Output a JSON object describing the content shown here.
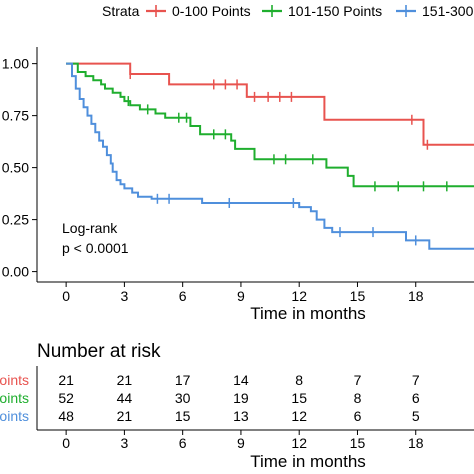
{
  "legend": {
    "title": "Strata",
    "items": [
      {
        "label": "0-100 Points",
        "color": "#E8534F"
      },
      {
        "label": "101-150 Points",
        "color": "#1FAE2E"
      },
      {
        "label": "151-300",
        "color": "#4F8FDC"
      }
    ]
  },
  "annotation": {
    "line1": "Log-rank",
    "line2": "p < 0.0001"
  },
  "risk_table": {
    "title": "Number at risk",
    "row_labels": [
      "oints",
      "Points",
      "oints"
    ]
  },
  "chart_data": [
    {
      "type": "line",
      "subtype": "kaplan-meier",
      "xlabel": "Time in months",
      "ylabel": "",
      "xlim": [
        -1.5,
        21
      ],
      "ylim": [
        -0.05,
        1.08
      ],
      "x_ticks": [
        0,
        3,
        6,
        9,
        12,
        15,
        18
      ],
      "x_tick_labels": [
        "0",
        "3",
        "6",
        "9",
        "12",
        "15",
        "18"
      ],
      "y_ticks": [
        0.0,
        0.25,
        0.5,
        0.75,
        1.0
      ],
      "y_tick_labels": [
        "0.00",
        "0.25",
        "0.50",
        "0.75",
        "1.00"
      ],
      "grid": false,
      "legend_position": "top",
      "series": [
        {
          "name": "0-100 Points",
          "color": "#E8534F",
          "steps": [
            [
              0,
              1.0
            ],
            [
              3.3,
              0.95
            ],
            [
              5.3,
              0.9
            ],
            [
              9.3,
              0.84
            ],
            [
              13.3,
              0.73
            ],
            [
              18.4,
              0.61
            ],
            [
              21,
              0.61
            ]
          ],
          "censors": [
            [
              3.3,
              0.95
            ],
            [
              7.6,
              0.9
            ],
            [
              8.2,
              0.9
            ],
            [
              8.8,
              0.9
            ],
            [
              9.7,
              0.84
            ],
            [
              10.4,
              0.84
            ],
            [
              11.0,
              0.84
            ],
            [
              11.6,
              0.84
            ],
            [
              17.8,
              0.73
            ],
            [
              18.6,
              0.61
            ]
          ]
        },
        {
          "name": "101-150 Points",
          "color": "#1FAE2E",
          "steps": [
            [
              0,
              1.0
            ],
            [
              0.6,
              0.96
            ],
            [
              1.0,
              0.94
            ],
            [
              1.4,
              0.92
            ],
            [
              1.8,
              0.9
            ],
            [
              2.0,
              0.88
            ],
            [
              2.4,
              0.86
            ],
            [
              2.8,
              0.84
            ],
            [
              3.0,
              0.82
            ],
            [
              3.3,
              0.8
            ],
            [
              3.8,
              0.78
            ],
            [
              4.6,
              0.76
            ],
            [
              5.1,
              0.74
            ],
            [
              6.4,
              0.7
            ],
            [
              6.9,
              0.66
            ],
            [
              8.5,
              0.63
            ],
            [
              8.7,
              0.59
            ],
            [
              9.7,
              0.54
            ],
            [
              13.4,
              0.5
            ],
            [
              14.5,
              0.46
            ],
            [
              14.8,
              0.41
            ],
            [
              21,
              0.41
            ]
          ],
          "censors": [
            [
              3.2,
              0.82
            ],
            [
              4.2,
              0.78
            ],
            [
              5.8,
              0.74
            ],
            [
              6.2,
              0.74
            ],
            [
              7.6,
              0.66
            ],
            [
              8.2,
              0.66
            ],
            [
              10.7,
              0.54
            ],
            [
              11.3,
              0.54
            ],
            [
              12.7,
              0.54
            ],
            [
              15.9,
              0.41
            ],
            [
              17.1,
              0.41
            ],
            [
              18.4,
              0.41
            ],
            [
              19.6,
              0.41
            ]
          ]
        },
        {
          "name": "151-300",
          "color": "#4F8FDC",
          "steps": [
            [
              0,
              1.0
            ],
            [
              0.3,
              0.94
            ],
            [
              0.5,
              0.88
            ],
            [
              0.7,
              0.83
            ],
            [
              0.9,
              0.79
            ],
            [
              1.1,
              0.75
            ],
            [
              1.3,
              0.71
            ],
            [
              1.5,
              0.67
            ],
            [
              1.7,
              0.63
            ],
            [
              1.9,
              0.6
            ],
            [
              2.1,
              0.56
            ],
            [
              2.3,
              0.52
            ],
            [
              2.4,
              0.48
            ],
            [
              2.6,
              0.44
            ],
            [
              2.8,
              0.42
            ],
            [
              3.0,
              0.4
            ],
            [
              3.4,
              0.38
            ],
            [
              3.7,
              0.36
            ],
            [
              4.4,
              0.35
            ],
            [
              5.6,
              0.35
            ],
            [
              7.0,
              0.33
            ],
            [
              8.6,
              0.33
            ],
            [
              12.0,
              0.31
            ],
            [
              12.6,
              0.29
            ],
            [
              12.9,
              0.25
            ],
            [
              13.3,
              0.21
            ],
            [
              13.7,
              0.19
            ],
            [
              17.5,
              0.15
            ],
            [
              18.7,
              0.11
            ],
            [
              21,
              0.11
            ]
          ],
          "censors": [
            [
              4.7,
              0.35
            ],
            [
              5.3,
              0.35
            ],
            [
              8.4,
              0.33
            ],
            [
              11.7,
              0.33
            ],
            [
              14.1,
              0.19
            ],
            [
              15.8,
              0.19
            ],
            [
              18.0,
              0.15
            ]
          ]
        }
      ]
    },
    {
      "type": "table",
      "title": "Number at risk",
      "xlabel": "Time in months",
      "columns": [
        "0",
        "3",
        "6",
        "9",
        "12",
        "15",
        "18"
      ],
      "rows": [
        {
          "color": "#E8534F",
          "values": [
            "21",
            "21",
            "17",
            "14",
            "8",
            "7",
            "7"
          ]
        },
        {
          "color": "#1FAE2E",
          "values": [
            "52",
            "44",
            "30",
            "19",
            "15",
            "8",
            "6"
          ]
        },
        {
          "color": "#4F8FDC",
          "values": [
            "48",
            "21",
            "15",
            "13",
            "12",
            "6",
            "5"
          ]
        }
      ]
    }
  ]
}
